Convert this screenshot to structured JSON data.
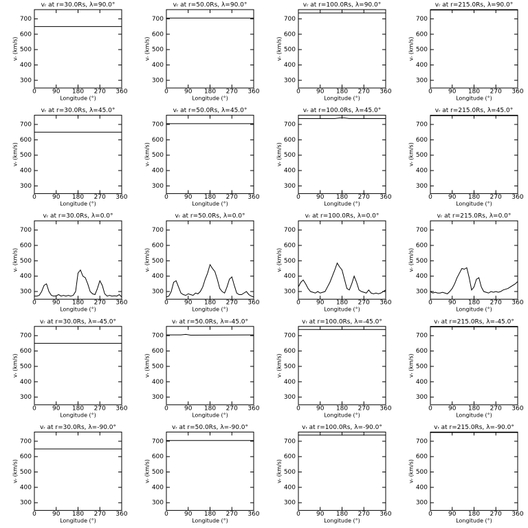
{
  "chart_data": [
    {
      "type": "line",
      "title": "vᵣ at r=30.0Rs, λ=90.0°",
      "xlabel": "Longitude (°)",
      "ylabel": "vᵣ (km/s)",
      "color": "#000000",
      "x": [
        0,
        360
      ],
      "values": [
        650,
        650
      ],
      "xlim": [
        0,
        360
      ],
      "xticks": [
        0,
        90,
        180,
        270,
        360
      ],
      "ylim": [
        250,
        760
      ],
      "yticks": [
        300,
        400,
        500,
        600,
        700
      ]
    },
    {
      "type": "line",
      "title": "vᵣ at r=50.0Rs, λ=90.0°",
      "xlabel": "Longitude (°)",
      "ylabel": "vᵣ (km/s)",
      "color": "#000000",
      "x": [
        0,
        360
      ],
      "values": [
        705,
        705
      ],
      "xlim": [
        0,
        360
      ],
      "xticks": [
        0,
        90,
        180,
        270,
        360
      ],
      "ylim": [
        250,
        760
      ],
      "yticks": [
        300,
        400,
        500,
        600,
        700
      ]
    },
    {
      "type": "line",
      "title": "vᵣ at r=100.0Rs, λ=90.0°",
      "xlabel": "Longitude (°)",
      "ylabel": "vᵣ (km/s)",
      "color": "#000000",
      "x": [
        0,
        360
      ],
      "values": [
        738,
        738
      ],
      "xlim": [
        0,
        360
      ],
      "xticks": [
        0,
        90,
        180,
        270,
        360
      ],
      "ylim": [
        250,
        760
      ],
      "yticks": [
        300,
        400,
        500,
        600,
        700
      ]
    },
    {
      "type": "line",
      "title": "vᵣ at r=215.0Rs, λ=90.0°",
      "xlabel": "Longitude (°)",
      "ylabel": "vᵣ (km/s)",
      "color": "#000000",
      "x": [
        0,
        360
      ],
      "values": [
        757,
        757
      ],
      "xlim": [
        0,
        360
      ],
      "xticks": [
        0,
        90,
        180,
        270,
        360
      ],
      "ylim": [
        250,
        760
      ],
      "yticks": [
        300,
        400,
        500,
        600,
        700
      ]
    },
    {
      "type": "line",
      "title": "vᵣ at r=30.0Rs, λ=45.0°",
      "xlabel": "Longitude (°)",
      "ylabel": "vᵣ (km/s)",
      "color": "#000000",
      "x": [
        0,
        360
      ],
      "values": [
        650,
        650
      ],
      "xlim": [
        0,
        360
      ],
      "xticks": [
        0,
        90,
        180,
        270,
        360
      ],
      "ylim": [
        250,
        760
      ],
      "yticks": [
        300,
        400,
        500,
        600,
        700
      ]
    },
    {
      "type": "line",
      "title": "vᵣ at r=50.0Rs, λ=45.0°",
      "xlabel": "Longitude (°)",
      "ylabel": "vᵣ (km/s)",
      "color": "#000000",
      "x": [
        0,
        360
      ],
      "values": [
        705,
        705
      ],
      "xlim": [
        0,
        360
      ],
      "xticks": [
        0,
        90,
        180,
        270,
        360
      ],
      "ylim": [
        250,
        760
      ],
      "yticks": [
        300,
        400,
        500,
        600,
        700
      ]
    },
    {
      "type": "line",
      "title": "vᵣ at r=100.0Rs, λ=45.0°",
      "xlabel": "Longitude (°)",
      "ylabel": "vᵣ (km/s)",
      "color": "#000000",
      "x": [
        0,
        150,
        170,
        190,
        210,
        360
      ],
      "values": [
        738,
        738,
        742,
        742,
        738,
        738
      ],
      "xlim": [
        0,
        360
      ],
      "xticks": [
        0,
        90,
        180,
        270,
        360
      ],
      "ylim": [
        250,
        760
      ],
      "yticks": [
        300,
        400,
        500,
        600,
        700
      ]
    },
    {
      "type": "line",
      "title": "vᵣ at r=215.0Rs, λ=45.0°",
      "xlabel": "Longitude (°)",
      "ylabel": "vᵣ (km/s)",
      "color": "#000000",
      "x": [
        0,
        360
      ],
      "values": [
        757,
        757
      ],
      "xlim": [
        0,
        360
      ],
      "xticks": [
        0,
        90,
        180,
        270,
        360
      ],
      "ylim": [
        250,
        760
      ],
      "yticks": [
        300,
        400,
        500,
        600,
        700
      ]
    },
    {
      "type": "line",
      "title": "vᵣ at r=30.0Rs, λ=0.0°",
      "xlabel": "Longitude (°)",
      "ylabel": "vᵣ (km/s)",
      "color": "#000000",
      "x": [
        0,
        10,
        20,
        30,
        40,
        50,
        60,
        70,
        80,
        90,
        100,
        110,
        120,
        130,
        140,
        150,
        160,
        170,
        180,
        190,
        200,
        210,
        220,
        230,
        240,
        250,
        260,
        270,
        280,
        290,
        300,
        310,
        320,
        330,
        340,
        350,
        360
      ],
      "values": [
        270,
        270,
        275,
        300,
        340,
        350,
        300,
        275,
        270,
        272,
        280,
        270,
        275,
        270,
        275,
        270,
        275,
        300,
        420,
        440,
        400,
        390,
        350,
        300,
        285,
        280,
        320,
        370,
        340,
        285,
        270,
        275,
        270,
        272,
        270,
        280,
        265
      ],
      "xlim": [
        0,
        360
      ],
      "xticks": [
        0,
        90,
        180,
        270,
        360
      ],
      "ylim": [
        250,
        760
      ],
      "yticks": [
        300,
        400,
        500,
        600,
        700
      ]
    },
    {
      "type": "line",
      "title": "vᵣ at r=50.0Rs, λ=0.0°",
      "xlabel": "Longitude (°)",
      "ylabel": "vᵣ (km/s)",
      "color": "#000000",
      "x": [
        0,
        10,
        20,
        30,
        40,
        50,
        60,
        70,
        80,
        90,
        100,
        110,
        120,
        130,
        140,
        150,
        160,
        170,
        180,
        190,
        200,
        210,
        220,
        230,
        240,
        250,
        260,
        270,
        280,
        290,
        300,
        310,
        320,
        330,
        340,
        350,
        360
      ],
      "values": [
        265,
        270,
        300,
        360,
        370,
        330,
        290,
        280,
        275,
        285,
        280,
        275,
        290,
        285,
        300,
        330,
        380,
        420,
        475,
        450,
        430,
        380,
        320,
        300,
        290,
        330,
        380,
        395,
        340,
        290,
        280,
        280,
        290,
        300,
        280,
        270,
        265
      ],
      "xlim": [
        0,
        360
      ],
      "xticks": [
        0,
        90,
        180,
        270,
        360
      ],
      "ylim": [
        250,
        760
      ],
      "yticks": [
        300,
        400,
        500,
        600,
        700
      ]
    },
    {
      "type": "line",
      "title": "vᵣ at r=100.0Rs, λ=0.0°",
      "xlabel": "Longitude (°)",
      "ylabel": "vᵣ (km/s)",
      "color": "#000000",
      "x": [
        0,
        10,
        20,
        30,
        40,
        50,
        60,
        70,
        80,
        90,
        100,
        110,
        120,
        130,
        140,
        150,
        160,
        170,
        180,
        190,
        200,
        210,
        220,
        230,
        240,
        250,
        260,
        270,
        280,
        290,
        300,
        310,
        320,
        330,
        340,
        350,
        360
      ],
      "values": [
        330,
        360,
        375,
        350,
        320,
        300,
        295,
        290,
        300,
        290,
        295,
        300,
        330,
        360,
        400,
        440,
        485,
        460,
        440,
        380,
        320,
        310,
        350,
        400,
        360,
        310,
        300,
        295,
        290,
        310,
        290,
        285,
        290,
        285,
        290,
        300,
        310
      ],
      "xlim": [
        0,
        360
      ],
      "xticks": [
        0,
        90,
        180,
        270,
        360
      ],
      "ylim": [
        250,
        760
      ],
      "yticks": [
        300,
        400,
        500,
        600,
        700
      ]
    },
    {
      "type": "line",
      "title": "vᵣ at r=215.0Rs, λ=0.0°",
      "xlabel": "Longitude (°)",
      "ylabel": "vᵣ (km/s)",
      "color": "#000000",
      "x": [
        0,
        10,
        20,
        30,
        40,
        50,
        60,
        70,
        80,
        90,
        100,
        110,
        120,
        130,
        140,
        150,
        160,
        170,
        180,
        190,
        200,
        210,
        220,
        230,
        240,
        250,
        260,
        270,
        280,
        290,
        300,
        310,
        320,
        330,
        340,
        350,
        360
      ],
      "values": [
        300,
        290,
        295,
        290,
        290,
        295,
        290,
        285,
        300,
        320,
        350,
        390,
        420,
        450,
        445,
        455,
        390,
        310,
        330,
        380,
        390,
        330,
        300,
        295,
        290,
        300,
        295,
        300,
        295,
        300,
        310,
        315,
        320,
        330,
        340,
        350,
        365
      ],
      "xlim": [
        0,
        360
      ],
      "xticks": [
        0,
        90,
        180,
        270,
        360
      ],
      "ylim": [
        250,
        760
      ],
      "yticks": [
        300,
        400,
        500,
        600,
        700
      ]
    },
    {
      "type": "line",
      "title": "vᵣ at r=30.0Rs, λ=-45.0°",
      "xlabel": "Longitude (°)",
      "ylabel": "vᵣ (km/s)",
      "color": "#000000",
      "x": [
        0,
        360
      ],
      "values": [
        650,
        650
      ],
      "xlim": [
        0,
        360
      ],
      "xticks": [
        0,
        90,
        180,
        270,
        360
      ],
      "ylim": [
        250,
        760
      ],
      "yticks": [
        300,
        400,
        500,
        600,
        700
      ]
    },
    {
      "type": "line",
      "title": "vᵣ at r=50.0Rs, λ=-45.0°",
      "xlabel": "Longitude (°)",
      "ylabel": "vᵣ (km/s)",
      "color": "#000000",
      "x": [
        0,
        60,
        80,
        100,
        360
      ],
      "values": [
        705,
        705,
        708,
        703,
        705
      ],
      "xlim": [
        0,
        360
      ],
      "xticks": [
        0,
        90,
        180,
        270,
        360
      ],
      "ylim": [
        250,
        760
      ],
      "yticks": [
        300,
        400,
        500,
        600,
        700
      ]
    },
    {
      "type": "line",
      "title": "vᵣ at r=100.0Rs, λ=-45.0°",
      "xlabel": "Longitude (°)",
      "ylabel": "vᵣ (km/s)",
      "color": "#000000",
      "x": [
        0,
        360
      ],
      "values": [
        740,
        740
      ],
      "xlim": [
        0,
        360
      ],
      "xticks": [
        0,
        90,
        180,
        270,
        360
      ],
      "ylim": [
        250,
        760
      ],
      "yticks": [
        300,
        400,
        500,
        600,
        700
      ]
    },
    {
      "type": "line",
      "title": "vᵣ at r=215.0Rs, λ=-45.0°",
      "xlabel": "Longitude (°)",
      "ylabel": "vᵣ (km/s)",
      "color": "#000000",
      "x": [
        0,
        360
      ],
      "values": [
        757,
        757
      ],
      "xlim": [
        0,
        360
      ],
      "xticks": [
        0,
        90,
        180,
        270,
        360
      ],
      "ylim": [
        250,
        760
      ],
      "yticks": [
        300,
        400,
        500,
        600,
        700
      ]
    },
    {
      "type": "line",
      "title": "vᵣ at r=30.0Rs, λ=-90.0°",
      "xlabel": "Longitude (°)",
      "ylabel": "vᵣ (km/s)",
      "color": "#000000",
      "x": [
        0,
        360
      ],
      "values": [
        650,
        650
      ],
      "xlim": [
        0,
        360
      ],
      "xticks": [
        0,
        90,
        180,
        270,
        360
      ],
      "ylim": [
        250,
        760
      ],
      "yticks": [
        300,
        400,
        500,
        600,
        700
      ]
    },
    {
      "type": "line",
      "title": "vᵣ at r=50.0Rs, λ=-90.0°",
      "xlabel": "Longitude (°)",
      "ylabel": "vᵣ (km/s)",
      "color": "#000000",
      "x": [
        0,
        360
      ],
      "values": [
        705,
        705
      ],
      "xlim": [
        0,
        360
      ],
      "xticks": [
        0,
        90,
        180,
        270,
        360
      ],
      "ylim": [
        250,
        760
      ],
      "yticks": [
        300,
        400,
        500,
        600,
        700
      ]
    },
    {
      "type": "line",
      "title": "vᵣ at r=100.0Rs, λ=-90.0°",
      "xlabel": "Longitude (°)",
      "ylabel": "vᵣ (km/s)",
      "color": "#000000",
      "x": [
        0,
        360
      ],
      "values": [
        740,
        740
      ],
      "xlim": [
        0,
        360
      ],
      "xticks": [
        0,
        90,
        180,
        270,
        360
      ],
      "ylim": [
        250,
        760
      ],
      "yticks": [
        300,
        400,
        500,
        600,
        700
      ]
    },
    {
      "type": "line",
      "title": "vᵣ at r=215.0Rs, λ=-90.0°",
      "xlabel": "Longitude (°)",
      "ylabel": "vᵣ (km/s)",
      "color": "#000000",
      "x": [
        0,
        360
      ],
      "values": [
        757,
        757
      ],
      "xlim": [
        0,
        360
      ],
      "xticks": [
        0,
        90,
        180,
        270,
        360
      ],
      "ylim": [
        250,
        760
      ],
      "yticks": [
        300,
        400,
        500,
        600,
        700
      ]
    }
  ]
}
